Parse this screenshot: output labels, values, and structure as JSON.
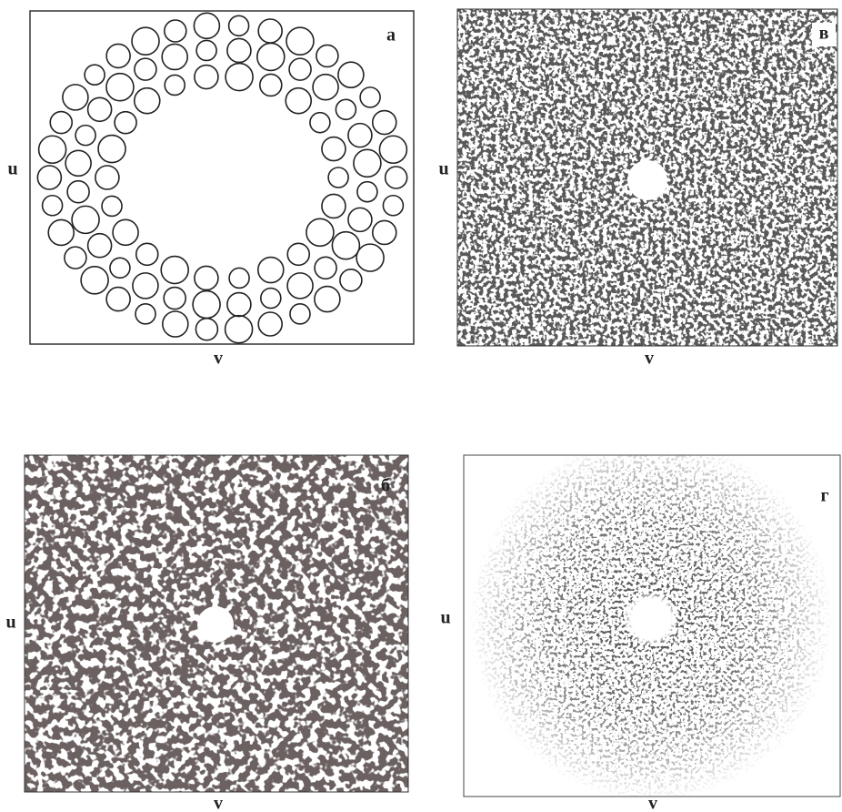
{
  "panels": [
    {
      "label": "а",
      "x_label": "v",
      "y_label": "u"
    },
    {
      "label": "в",
      "x_label": "v",
      "y_label": "u"
    },
    {
      "label": "б",
      "x_label": "v",
      "y_label": "u"
    },
    {
      "label": "г",
      "x_label": "v",
      "y_label": "u"
    }
  ]
}
